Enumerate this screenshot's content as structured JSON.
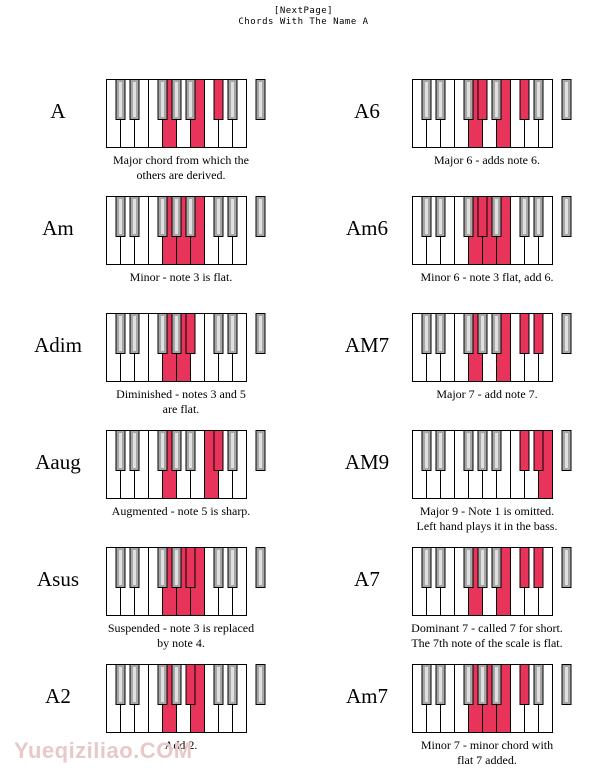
{
  "header": {
    "line1": "[NextPage]",
    "line2": "Chords With The Name A"
  },
  "colors": {
    "highlight": "#e8345a",
    "black_key": "#a7a7a7",
    "white_key": "#ffffff",
    "outline": "#000000"
  },
  "chords": [
    {
      "name": "A",
      "desc": [
        "Major chord from which the",
        "others are derived."
      ],
      "white": [
        4,
        6
      ],
      "black": [
        5
      ]
    },
    {
      "name": "A6",
      "desc": [
        "Major 6 - adds note 6."
      ],
      "white": [
        4,
        6
      ],
      "black": [
        3,
        5
      ]
    },
    {
      "name": "Am",
      "desc": [
        "Minor - note 3 is flat."
      ],
      "white": [
        4,
        5,
        6
      ],
      "black": []
    },
    {
      "name": "Am6",
      "desc": [
        "Minor 6 - note 3 flat, add 6."
      ],
      "white": [
        4,
        5,
        6
      ],
      "black": [
        3
      ]
    },
    {
      "name": "Adim",
      "desc": [
        "Diminished - notes 3 and 5",
        "are flat."
      ],
      "white": [
        4,
        5
      ],
      "black": [
        4
      ]
    },
    {
      "name": "AM7",
      "desc": [
        "Major 7 - add note 7."
      ],
      "white": [
        4,
        6
      ],
      "black": [
        5,
        6
      ]
    },
    {
      "name": "Aaug",
      "desc": [
        "Augmented - note 5 is sharp."
      ],
      "white": [
        4,
        7
      ],
      "black": [
        5
      ]
    },
    {
      "name": "AM9",
      "desc": [
        "Major 9 - Note 1 is omitted.",
        "Left hand plays it in the bass."
      ],
      "white": [
        9
      ],
      "black": [
        5,
        6
      ]
    },
    {
      "name": "Asus",
      "desc": [
        "Suspended - note 3 is replaced",
        "by note 4."
      ],
      "white": [
        4,
        5,
        6
      ],
      "black": [
        4
      ]
    },
    {
      "name": "A7",
      "desc": [
        "Dominant 7 - called 7 for short.",
        "The 7th note of the scale is flat."
      ],
      "white": [
        4,
        6
      ],
      "black": [
        5,
        6
      ]
    },
    {
      "name": "A2",
      "desc": [
        "Add 2."
      ],
      "white": [
        4,
        6
      ],
      "black": [
        4
      ]
    },
    {
      "name": "Am7",
      "desc": [
        "Minor 7 - minor chord with",
        "flat 7 added."
      ],
      "white": [
        4,
        5,
        6
      ],
      "black": [
        5
      ]
    }
  ],
  "watermark": "Yueqiziliao.COM"
}
